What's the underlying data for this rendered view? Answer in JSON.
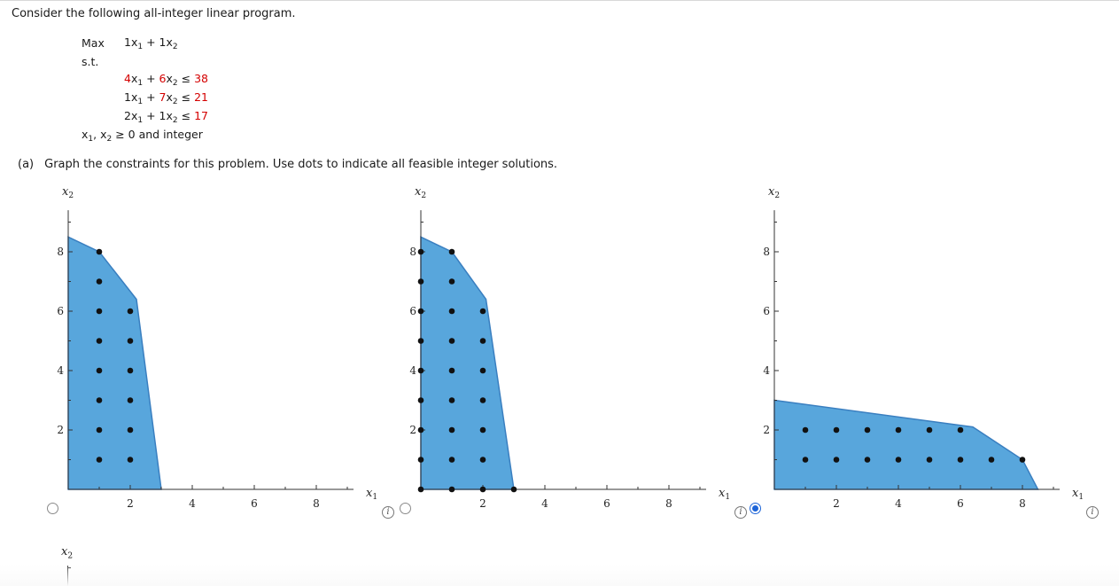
{
  "intro": "Consider the following all-integer linear program.",
  "lp": {
    "max_label": "Max",
    "objective": {
      "c1": "1",
      "c2": "1"
    },
    "st_label": "s.t.",
    "constraints": [
      {
        "a1": "4",
        "a2": "6",
        "rel": "≤",
        "rhs": "38"
      },
      {
        "a1": "1",
        "a2": "7",
        "rel": "≤",
        "rhs": "21"
      },
      {
        "a1": "2",
        "a2": "1",
        "rel": "≤",
        "rhs": "17"
      }
    ],
    "nonneg_text": "≥ 0 and integer",
    "var_symbol": "x"
  },
  "part_a": {
    "tag": "(a)",
    "text": "Graph the constraints for this problem. Use dots to indicate all feasible integer solutions."
  },
  "axis": {
    "x_label": "x",
    "x_sub": "1",
    "y_label": "x",
    "y_sub": "2",
    "x_ticks": [
      "2",
      "4",
      "6",
      "8"
    ],
    "y_ticks": [
      "2",
      "4",
      "6",
      "8"
    ]
  },
  "info_icon_text": "i",
  "colors": {
    "fill": "#58a6dc",
    "stroke": "#3a7fc0",
    "dot": "#111111",
    "radio_selected": "#1c64d8",
    "rhs": "#d40000"
  },
  "chart_data": [
    {
      "type": "scatter",
      "option": "A",
      "selected": false,
      "xlabel": "x1",
      "ylabel": "x2",
      "xlim": [
        0,
        9.2
      ],
      "ylim": [
        0,
        9.4
      ],
      "region": [
        [
          0,
          8.5
        ],
        [
          1,
          8
        ],
        [
          2.2,
          6.4
        ],
        [
          3,
          0
        ],
        [
          0,
          0
        ]
      ],
      "points": [
        [
          1,
          8
        ],
        [
          1,
          7
        ],
        [
          1,
          6
        ],
        [
          2,
          6
        ],
        [
          1,
          5
        ],
        [
          2,
          5
        ],
        [
          1,
          4
        ],
        [
          2,
          4
        ],
        [
          1,
          3
        ],
        [
          2,
          3
        ],
        [
          1,
          2
        ],
        [
          2,
          2
        ],
        [
          1,
          1
        ],
        [
          2,
          1
        ]
      ]
    },
    {
      "type": "scatter",
      "option": "B",
      "selected": false,
      "xlabel": "x1",
      "ylabel": "x2",
      "xlim": [
        0,
        9.2
      ],
      "ylim": [
        0,
        9.4
      ],
      "region": [
        [
          0,
          8.5
        ],
        [
          1,
          8
        ],
        [
          2.1,
          6.4
        ],
        [
          3,
          0
        ],
        [
          0,
          0
        ]
      ],
      "points": [
        [
          0,
          8
        ],
        [
          1,
          8
        ],
        [
          0,
          7
        ],
        [
          1,
          7
        ],
        [
          0,
          6
        ],
        [
          1,
          6
        ],
        [
          2,
          6
        ],
        [
          0,
          5
        ],
        [
          1,
          5
        ],
        [
          2,
          5
        ],
        [
          0,
          4
        ],
        [
          1,
          4
        ],
        [
          2,
          4
        ],
        [
          0,
          3
        ],
        [
          1,
          3
        ],
        [
          2,
          3
        ],
        [
          0,
          2
        ],
        [
          1,
          2
        ],
        [
          2,
          2
        ],
        [
          0,
          1
        ],
        [
          1,
          1
        ],
        [
          2,
          1
        ],
        [
          0,
          0
        ],
        [
          1,
          0
        ],
        [
          2,
          0
        ],
        [
          3,
          0
        ]
      ]
    },
    {
      "type": "scatter",
      "option": "C",
      "selected": true,
      "xlabel": "x1",
      "ylabel": "x2",
      "xlim": [
        0,
        9.2
      ],
      "ylim": [
        0,
        9.4
      ],
      "region": [
        [
          0,
          3
        ],
        [
          6.4,
          2.1
        ],
        [
          8,
          1
        ],
        [
          8.5,
          0
        ],
        [
          0,
          0
        ]
      ],
      "points": [
        [
          1,
          2
        ],
        [
          2,
          2
        ],
        [
          3,
          2
        ],
        [
          4,
          2
        ],
        [
          5,
          2
        ],
        [
          6,
          2
        ],
        [
          1,
          1
        ],
        [
          2,
          1
        ],
        [
          3,
          1
        ],
        [
          4,
          1
        ],
        [
          5,
          1
        ],
        [
          6,
          1
        ],
        [
          7,
          1
        ],
        [
          8,
          1
        ]
      ]
    }
  ]
}
